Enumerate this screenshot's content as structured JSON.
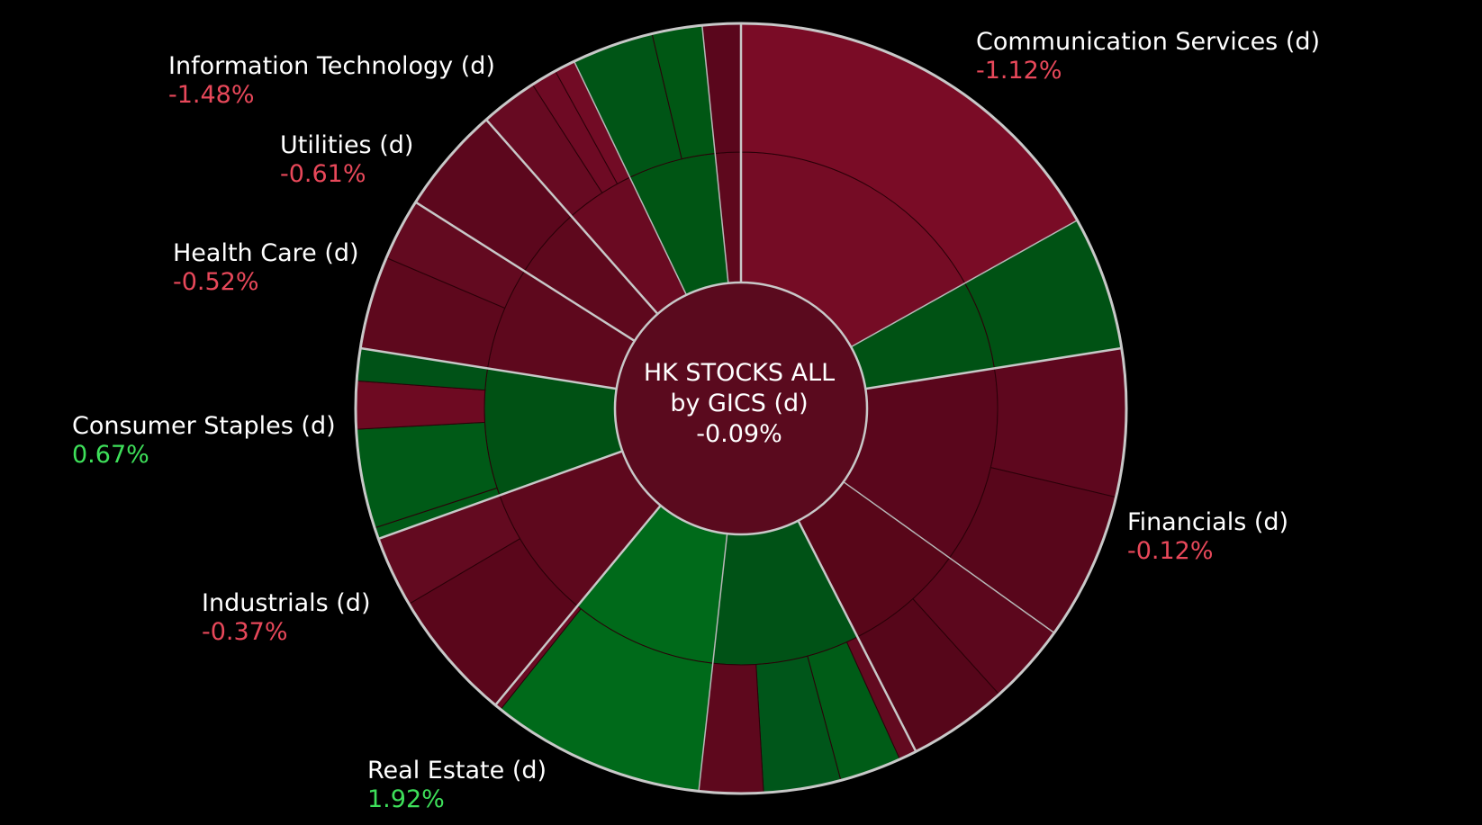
{
  "chart_data": {
    "type": "sunburst",
    "title": "HK STOCKS ALL",
    "subtitle": "by GICS (d)",
    "total_change": "-0.09%",
    "total_value": -0.09,
    "unit": "%",
    "colors": {
      "background": "#000000",
      "separator": "#c8c8c8",
      "negative_text": "#e8485a",
      "positive_text": "#3ee05a",
      "center_fill": "#5a0a1e"
    },
    "sectors": [
      {
        "name": "Communication Services (d)",
        "change": "-1.12%",
        "value": -1.12,
        "share": 0.225,
        "color": "#6f0c24",
        "children": [
          {
            "share": 0.75,
            "color": "#750c25",
            "children": [
              {
                "share": 1.0,
                "color": "#7a0c26"
              }
            ]
          },
          {
            "share": 0.25,
            "color": "#005214",
            "children": [
              {
                "share": 1.0,
                "color": "#005214"
              }
            ]
          }
        ]
      },
      {
        "name": "Financials (d)",
        "change": "-0.12%",
        "value": -0.12,
        "share": 0.2,
        "color": "#5a061c",
        "children": [
          {
            "share": 0.62,
            "color": "#5a061c",
            "children": [
              {
                "share": 0.5,
                "color": "#5e071e"
              },
              {
                "share": 0.5,
                "color": "#58061b"
              }
            ]
          },
          {
            "share": 0.38,
            "color": "#580619",
            "children": [
              {
                "share": 0.45,
                "color": "#5c071d"
              },
              {
                "share": 0.55,
                "color": "#56061a"
              }
            ]
          }
        ]
      },
      {
        "name": "Real Estate (d)",
        "change": "1.92%",
        "value": 1.92,
        "share": 0.185,
        "color": "#006518",
        "children": [
          {
            "share": 0.5,
            "color": "#005216",
            "children": [
              {
                "share": 0.08,
                "color": "#630a20"
              },
              {
                "share": 0.28,
                "color": "#005c17"
              },
              {
                "share": 0.35,
                "color": "#00561a"
              },
              {
                "share": 0.29,
                "color": "#5e081d"
              }
            ]
          },
          {
            "share": 0.5,
            "color": "#006a1a",
            "children": [
              {
                "share": 0.97,
                "color": "#006a1a"
              },
              {
                "share": 0.03,
                "color": "#6a0a22"
              }
            ]
          }
        ]
      },
      {
        "name": "Industrials (d)",
        "change": "-0.37%",
        "value": -0.37,
        "share": 0.085,
        "color": "#5e081d",
        "children": [
          {
            "share": 1.0,
            "color": "#5e081d",
            "children": [
              {
                "share": 0.65,
                "color": "#5a061b"
              },
              {
                "share": 0.35,
                "color": "#630a20"
              }
            ]
          }
        ]
      },
      {
        "name": "Consumer Staples (d)",
        "change": "0.67%",
        "value": 0.67,
        "share": 0.08,
        "color": "#005114",
        "children": [
          {
            "share": 1.0,
            "color": "#005114",
            "children": [
              {
                "share": 0.06,
                "color": "#005a17"
              },
              {
                "share": 0.52,
                "color": "#005a17"
              },
              {
                "share": 0.25,
                "color": "#6e0a22"
              },
              {
                "share": 0.17,
                "color": "#005217"
              }
            ]
          }
        ]
      },
      {
        "name": "Health Care (d)",
        "change": "-0.52%",
        "value": -0.52,
        "share": 0.065,
        "color": "#5e081d",
        "children": [
          {
            "share": 1.0,
            "color": "#5e081d",
            "children": [
              {
                "share": 0.6,
                "color": "#5e081d"
              },
              {
                "share": 0.4,
                "color": "#630a20"
              }
            ]
          }
        ]
      },
      {
        "name": "Utilities (d)",
        "change": "-0.61%",
        "value": -0.61,
        "share": 0.045,
        "color": "#5e081d",
        "children": [
          {
            "share": 1.0,
            "color": "#5e081d",
            "children": [
              {
                "share": 1.0,
                "color": "#5c071d"
              }
            ]
          }
        ]
      },
      {
        "name": "Information Technology (d)",
        "change": "-1.48%",
        "value": -1.48,
        "share": 0.115,
        "color": "#6a0a22",
        "children": [
          {
            "share": 0.38,
            "color": "#6a0a22",
            "children": [
              {
                "share": 0.55,
                "color": "#670a22"
              },
              {
                "share": 0.25,
                "color": "#6e0a24"
              },
              {
                "share": 0.2,
                "color": "#720b25"
              }
            ]
          },
          {
            "share": 0.48,
            "color": "#005514",
            "children": [
              {
                "share": 0.62,
                "color": "#005516"
              },
              {
                "share": 0.38,
                "color": "#005714"
              }
            ]
          },
          {
            "share": 0.14,
            "color": "#5e081d",
            "children": [
              {
                "share": 1.0,
                "color": "#5a061c"
              }
            ]
          }
        ]
      }
    ]
  }
}
